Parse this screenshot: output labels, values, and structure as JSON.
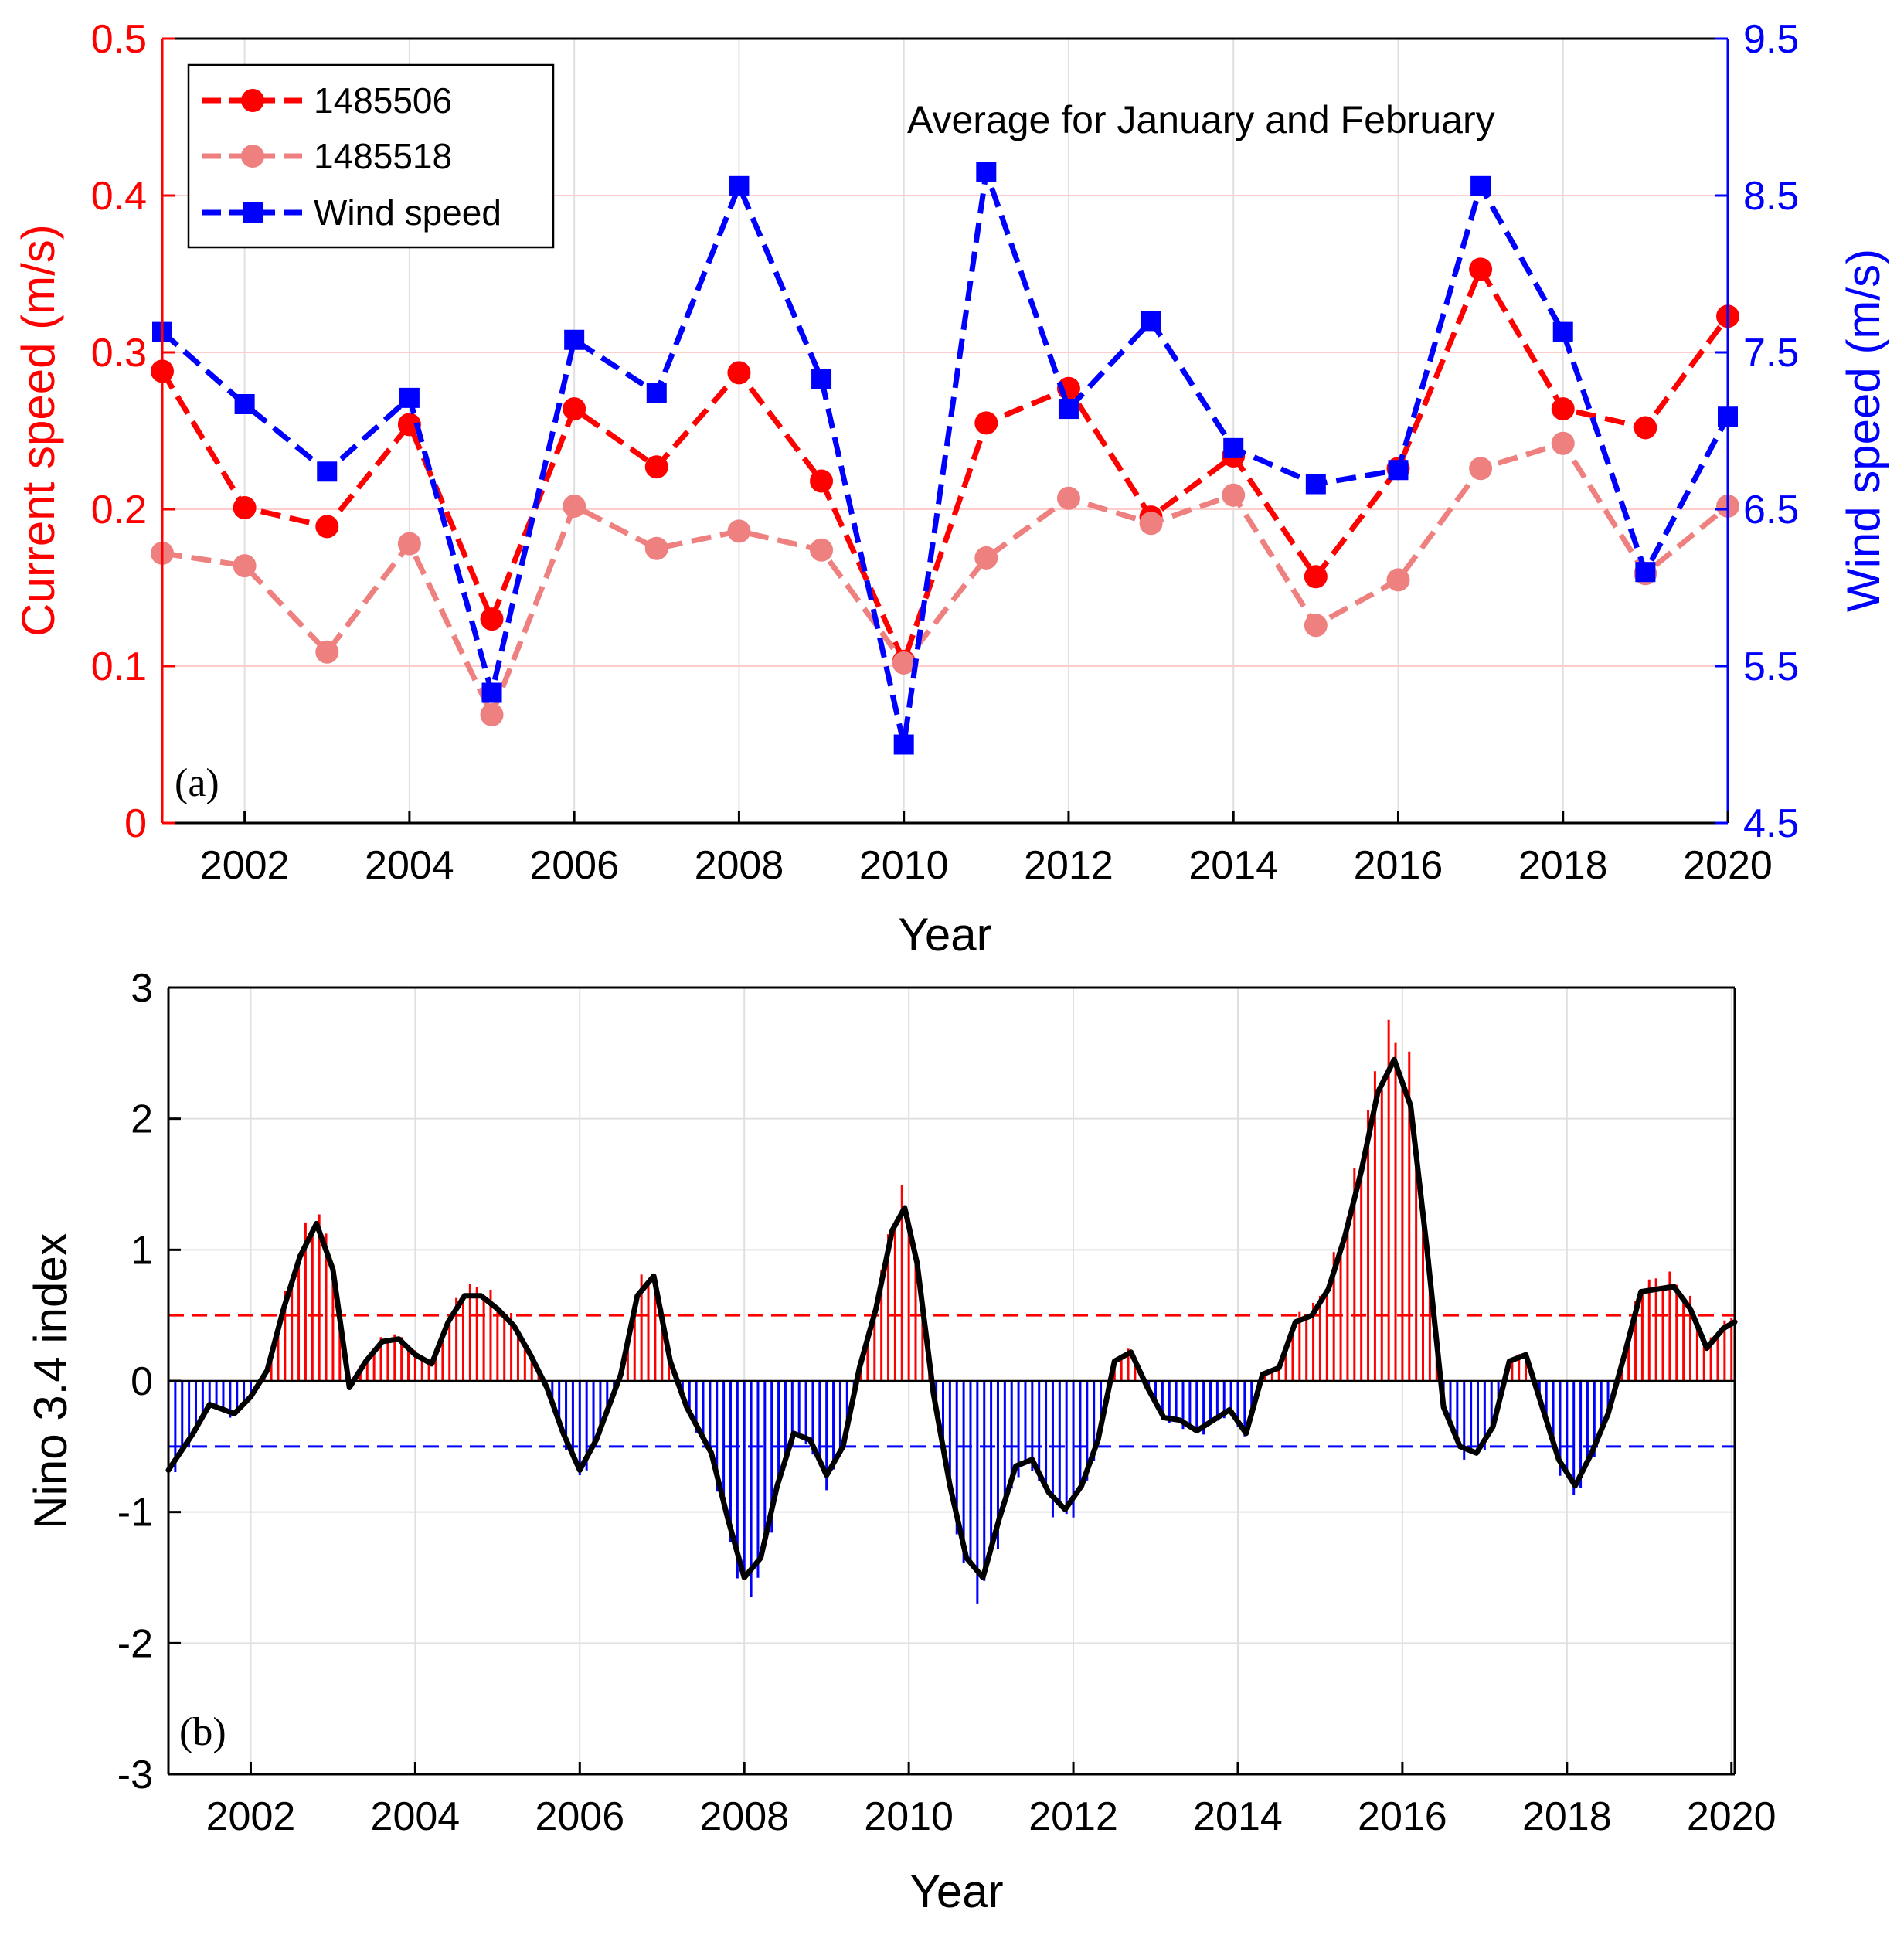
{
  "colors": {
    "red": "#ff0000",
    "pink": "#ee8080",
    "blue": "#0000ff",
    "black": "#000000",
    "grid": "#e0e0e0",
    "red_grid": "#ffcccc"
  },
  "chart_data": [
    {
      "type": "line",
      "panel_label": "(a)",
      "annotation": "Average for January and February",
      "xlabel": "Year",
      "ylabel_left": "Current speed (m/s)",
      "ylabel_right": "Wind speed (m/s)",
      "xlim": [
        2001,
        2020
      ],
      "ylim_left": [
        0,
        0.5
      ],
      "ylim_right": [
        4.5,
        9.5
      ],
      "xticks": [
        2002,
        2004,
        2006,
        2008,
        2010,
        2012,
        2014,
        2016,
        2018,
        2020
      ],
      "xtick_labels": [
        "2002",
        "2004",
        "2006",
        "2008",
        "2010",
        "2012",
        "2014",
        "2016",
        "2018",
        "2020"
      ],
      "yticks_left": [
        0,
        0.1,
        0.2,
        0.3,
        0.4,
        0.5
      ],
      "ytick_labels_left": [
        "0",
        "0.1",
        "0.2",
        "0.3",
        "0.4",
        "0.5"
      ],
      "yticks_right": [
        4.5,
        5.5,
        6.5,
        7.5,
        8.5,
        9.5
      ],
      "ytick_labels_right": [
        "4.5",
        "5.5",
        "6.5",
        "7.5",
        "8.5",
        "9.5"
      ],
      "legend_position": "top-left",
      "x": [
        2001,
        2002,
        2003,
        2004,
        2005,
        2006,
        2007,
        2008,
        2009,
        2010,
        2011,
        2012,
        2013,
        2014,
        2015,
        2016,
        2017,
        2018,
        2019,
        2020
      ],
      "series": [
        {
          "name": "1485506",
          "axis": "left",
          "marker": "circle",
          "color": "#ff0000",
          "values": [
            0.288,
            0.201,
            0.189,
            0.254,
            0.13,
            0.264,
            0.227,
            0.287,
            0.218,
            0.103,
            0.255,
            0.277,
            0.195,
            0.234,
            0.157,
            0.226,
            0.353,
            0.264,
            0.252,
            0.323
          ]
        },
        {
          "name": "1485518",
          "axis": "left",
          "marker": "circle",
          "color": "#ee8080",
          "values": [
            0.172,
            0.164,
            0.109,
            0.178,
            0.069,
            0.202,
            0.175,
            0.186,
            0.174,
            0.102,
            0.169,
            0.207,
            0.191,
            0.209,
            0.126,
            0.155,
            0.226,
            0.242,
            0.159,
            0.202
          ]
        },
        {
          "name": "Wind speed",
          "axis": "right",
          "marker": "square",
          "color": "#0000ff",
          "values": [
            7.63,
            7.17,
            6.74,
            7.21,
            5.33,
            7.58,
            7.24,
            8.56,
            7.33,
            5.0,
            8.65,
            7.14,
            7.7,
            6.89,
            6.66,
            6.75,
            8.56,
            7.63,
            6.1,
            7.09
          ]
        }
      ]
    },
    {
      "type": "bar",
      "panel_label": "(b)",
      "xlabel": "Year",
      "ylabel": "Nino 3.4 index",
      "xlim": [
        2001,
        2020.04
      ],
      "ylim": [
        -3,
        3
      ],
      "xticks": [
        2002,
        2004,
        2006,
        2008,
        2010,
        2012,
        2014,
        2016,
        2018,
        2020
      ],
      "xtick_labels": [
        "2002",
        "2004",
        "2006",
        "2008",
        "2010",
        "2012",
        "2014",
        "2016",
        "2018",
        "2020"
      ],
      "yticks": [
        -3,
        -2,
        -1,
        0,
        1,
        2,
        3
      ],
      "ytick_labels": [
        "-3",
        "-2",
        "-1",
        "0",
        "1",
        "2",
        "3"
      ],
      "thresholds": [
        0.5,
        -0.5
      ],
      "series_smoothed": {
        "name": "smoothed",
        "x": [
          2001.0,
          2001.3,
          2001.5,
          2001.8,
          2002.0,
          2002.2,
          2002.4,
          2002.6,
          2002.8,
          2003.0,
          2003.2,
          2003.4,
          2003.6,
          2003.8,
          2004.0,
          2004.2,
          2004.4,
          2004.6,
          2004.8,
          2005.0,
          2005.2,
          2005.4,
          2005.6,
          2005.8,
          2006.0,
          2006.2,
          2006.5,
          2006.7,
          2006.9,
          2007.1,
          2007.3,
          2007.6,
          2007.8,
          2008.0,
          2008.2,
          2008.4,
          2008.6,
          2008.8,
          2009.0,
          2009.2,
          2009.4,
          2009.6,
          2009.8,
          2009.95,
          2010.1,
          2010.3,
          2010.5,
          2010.7,
          2010.9,
          2011.1,
          2011.3,
          2011.5,
          2011.7,
          2011.9,
          2012.1,
          2012.3,
          2012.5,
          2012.7,
          2012.9,
          2013.1,
          2013.3,
          2013.5,
          2013.7,
          2013.9,
          2014.1,
          2014.3,
          2014.5,
          2014.7,
          2014.9,
          2015.1,
          2015.3,
          2015.5,
          2015.7,
          2015.9,
          2016.1,
          2016.3,
          2016.5,
          2016.7,
          2016.9,
          2017.1,
          2017.3,
          2017.5,
          2017.7,
          2017.9,
          2018.1,
          2018.3,
          2018.5,
          2018.7,
          2018.9,
          2019.1,
          2019.3,
          2019.5,
          2019.7,
          2019.9,
          2020.04
        ],
        "values": [
          -0.68,
          -0.4,
          -0.18,
          -0.25,
          -0.12,
          0.08,
          0.55,
          0.95,
          1.2,
          0.85,
          -0.05,
          0.15,
          0.3,
          0.32,
          0.2,
          0.13,
          0.45,
          0.65,
          0.65,
          0.55,
          0.42,
          0.2,
          -0.05,
          -0.4,
          -0.68,
          -0.45,
          0.05,
          0.65,
          0.8,
          0.15,
          -0.2,
          -0.55,
          -1.05,
          -1.5,
          -1.35,
          -0.8,
          -0.4,
          -0.45,
          -0.72,
          -0.5,
          0.1,
          0.55,
          1.15,
          1.32,
          0.9,
          -0.1,
          -0.8,
          -1.35,
          -1.5,
          -1.05,
          -0.65,
          -0.6,
          -0.85,
          -0.98,
          -0.8,
          -0.45,
          0.15,
          0.22,
          -0.05,
          -0.28,
          -0.3,
          -0.38,
          -0.3,
          -0.22,
          -0.4,
          0.05,
          0.1,
          0.45,
          0.5,
          0.7,
          1.1,
          1.6,
          2.2,
          2.45,
          2.1,
          1.0,
          -0.2,
          -0.5,
          -0.55,
          -0.35,
          0.15,
          0.2,
          -0.2,
          -0.6,
          -0.8,
          -0.55,
          -0.25,
          0.2,
          0.68,
          0.7,
          0.72,
          0.55,
          0.25,
          0.4,
          0.45
        ]
      }
    }
  ]
}
